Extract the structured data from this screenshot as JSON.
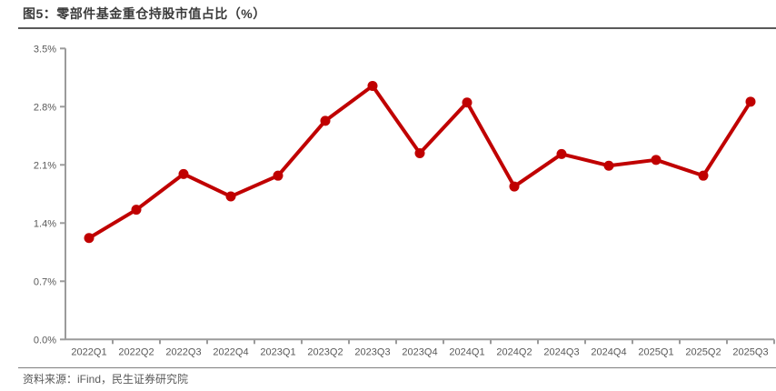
{
  "figure": {
    "title": "图5：零部件基金重仓持股市值占比（%）",
    "source": "资料来源：iFind，民生证券研究院"
  },
  "colors": {
    "line": "#C00000",
    "marker": "#C00000",
    "axis": "#9b9b9b",
    "tick_label": "#595959",
    "title_text": "#3b3b3b",
    "header_rule": "#595959",
    "footer_rule": "#7f7f7f"
  },
  "chart_data": {
    "type": "line",
    "title": "零部件基金重仓持股市值占比（%）",
    "xlabel": "",
    "ylabel": "",
    "categories": [
      "2022Q1",
      "2022Q2",
      "2022Q3",
      "2022Q4",
      "2023Q1",
      "2023Q2",
      "2023Q3",
      "2023Q4",
      "2024Q1",
      "2024Q2",
      "2024Q3",
      "2024Q4",
      "2025Q1",
      "2025Q2",
      "2025Q3"
    ],
    "series": [
      {
        "name": "零部件基金重仓持股市值占比",
        "values": [
          1.22,
          1.56,
          1.99,
          1.72,
          1.97,
          2.63,
          3.05,
          2.24,
          2.85,
          1.84,
          2.23,
          2.09,
          2.16,
          1.97,
          2.86
        ]
      }
    ],
    "ylim": [
      0.0,
      3.5
    ],
    "ytick_step": 0.7,
    "ytick_labels": [
      "0.0%",
      "0.7%",
      "1.4%",
      "2.1%",
      "2.8%",
      "3.5%"
    ],
    "grid": false,
    "legend_position": "none"
  }
}
